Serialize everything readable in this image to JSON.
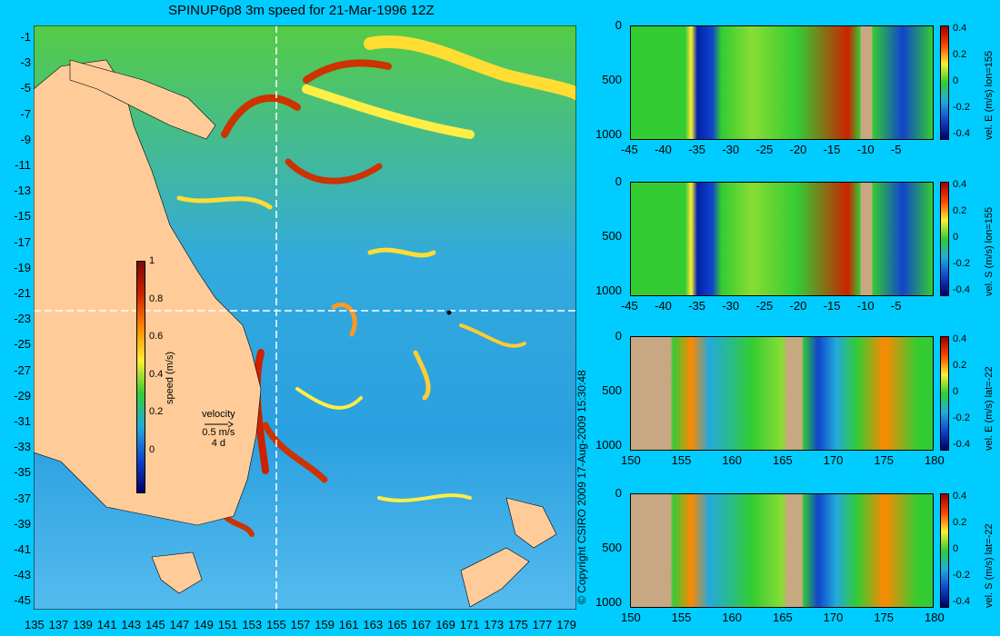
{
  "title": "SPINUP6p8 3m speed for 21-Mar-1996 12Z",
  "copyright": "© Copyright CSIRO 2009   17-Aug-2009 15:30:48",
  "map": {
    "lon_ticks": [
      "135",
      "137",
      "139",
      "141",
      "143",
      "145",
      "147",
      "149",
      "151",
      "153",
      "155",
      "157",
      "159",
      "161",
      "163",
      "165",
      "167",
      "169",
      "171",
      "173",
      "175",
      "177",
      "179"
    ],
    "lat_ticks": [
      "-1",
      "-3",
      "-5",
      "-7",
      "-9",
      "-11",
      "-13",
      "-15",
      "-17",
      "-19",
      "-21",
      "-23",
      "-25",
      "-27",
      "-29",
      "-31",
      "-33",
      "-35",
      "-37",
      "-39",
      "-41",
      "-43",
      "-45"
    ],
    "section_lon": "155",
    "section_lat": "-22",
    "land_color": "#ffcc99",
    "ocean_color": "#33aaee"
  },
  "speed_colorbar": {
    "label": "speed (m/s)",
    "ticks": [
      "1",
      "0.8",
      "0.6",
      "0.4",
      "0.2",
      "0"
    ]
  },
  "velocity_key": {
    "label": "velocity",
    "speed": "0.5 m/s",
    "time": "4 d"
  },
  "sections": [
    {
      "id": "p1",
      "label": "vel. E (m/s) lon=155",
      "xticks": [
        "-45",
        "-40",
        "-35",
        "-30",
        "-25",
        "-20",
        "-15",
        "-10",
        "-5"
      ],
      "yticks": [
        "0",
        "500",
        "1000"
      ],
      "cticks": [
        "0.4",
        "0.2",
        "0",
        "-0.2",
        "-0.4"
      ]
    },
    {
      "id": "p2",
      "label": "vel. S (m/s) lon=155",
      "xticks": [
        "-45",
        "-40",
        "-35",
        "-30",
        "-25",
        "-20",
        "-15",
        "-10",
        "-5"
      ],
      "yticks": [
        "0",
        "500",
        "1000"
      ],
      "cticks": [
        "0.4",
        "0.2",
        "0",
        "-0.2",
        "-0.4"
      ]
    },
    {
      "id": "p3",
      "label": "vel. E (m/s) lat=-22",
      "xticks": [
        "150",
        "155",
        "160",
        "165",
        "170",
        "175",
        "180"
      ],
      "yticks": [
        "0",
        "500",
        "1000"
      ],
      "cticks": [
        "0.4",
        "0.2",
        "0",
        "-0.2",
        "-0.4"
      ]
    },
    {
      "id": "p4",
      "label": "vel. S (m/s) lat=-22",
      "xticks": [
        "150",
        "155",
        "160",
        "165",
        "170",
        "175",
        "180"
      ],
      "yticks": [
        "0",
        "500",
        "1000"
      ],
      "cticks": [
        "0.4",
        "0.2",
        "0",
        "-0.2",
        "-0.4"
      ]
    }
  ],
  "colors": {
    "background": "#00ccff",
    "section_land": "#c8a882",
    "vel_pos": "#cc2200",
    "vel_neg": "#0022aa",
    "vel_zero": "#33cc33"
  }
}
